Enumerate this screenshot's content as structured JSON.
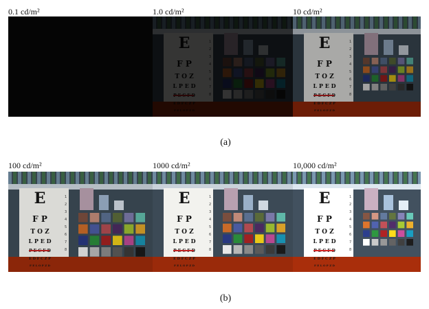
{
  "row_a": {
    "labels": [
      "0.1 cd/m²",
      "1.0 cd/m²",
      "10 cd/m²"
    ],
    "caption": "(a)"
  },
  "row_b": {
    "labels": [
      "100 cd/m²",
      "1000 cd/m²",
      "10,000 cd/m²"
    ],
    "caption": "(b)"
  },
  "chart_content": {
    "eye_chart_lines": [
      "E",
      "F P",
      "T O Z",
      "L P E D",
      "P E C F D",
      "E D F C Z P",
      "F E L O P Z D"
    ],
    "eye_chart_numbers": [
      "1",
      "2",
      "3",
      "4",
      "5",
      "6",
      "7",
      "8"
    ]
  },
  "colors": {
    "floor": "#9a2a0a",
    "wall": "#2e3b46",
    "shelf_green": "#3f6a48",
    "checker": [
      "#7a4e3e",
      "#c08a78",
      "#5a6f90",
      "#5a6a3a",
      "#7a78a8",
      "#5fb8a8",
      "#c86a28",
      "#4a5aa0",
      "#b04a50",
      "#4a2a60",
      "#98b830",
      "#d8a028",
      "#283880",
      "#2a8a3a",
      "#a02020",
      "#e8c818",
      "#b84890",
      "#1890b0",
      "#e8e8e8",
      "#b8b8b8",
      "#8a8a8a",
      "#5a5a5a",
      "#3a3a3a",
      "#1a1a1a"
    ]
  }
}
